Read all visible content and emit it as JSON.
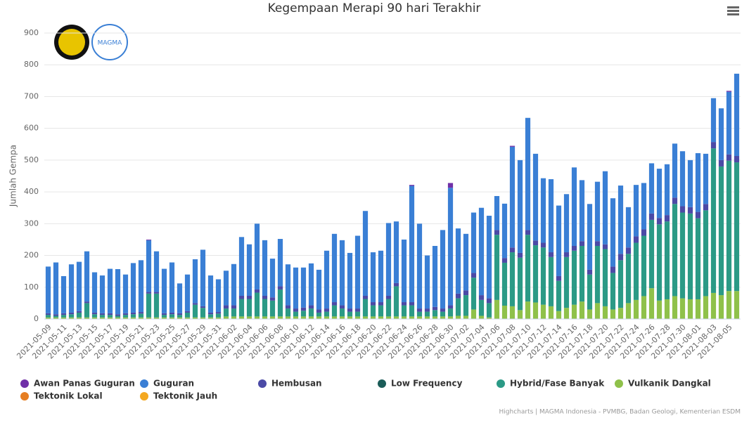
{
  "chart_data": {
    "type": "stacked_bar",
    "title": "Kegempaan Merapi 90 hari Terakhir",
    "y_axis_label": "Jumlah Gempa",
    "credits": "Highcharts | MAGMA Indonesia - PVMBG, Badan Geologi, Kementerian ESDM",
    "logo_text": "MAGMA",
    "ylim": [
      0,
      900
    ],
    "yticks": [
      0,
      100,
      200,
      300,
      400,
      500,
      600,
      700,
      800,
      900
    ],
    "grid": true,
    "categories": [
      "2021-05-09",
      null,
      "2021-05-11",
      null,
      "2021-05-13",
      null,
      "2021-05-15",
      null,
      "2021-05-17",
      null,
      "2021-05-19",
      null,
      "2021-05-21",
      null,
      "2021-05-23",
      null,
      "2021-05-25",
      null,
      "2021-05-27",
      null,
      "2021-05-29",
      null,
      "2021-05-31",
      null,
      "2021-06-02",
      null,
      "2021-06-04",
      null,
      "2021-06-06",
      null,
      "2021-06-08",
      null,
      "2021-06-10",
      null,
      "2021-06-12",
      null,
      "2021-06-14",
      null,
      "2021-06-16",
      null,
      "2021-06-18",
      null,
      "2021-06-20",
      null,
      "2021-06-22",
      null,
      "2021-06-24",
      null,
      "2021-06-26",
      null,
      "2021-06-28",
      null,
      "2021-06-30",
      null,
      "2021-07-02",
      null,
      "2021-07-04",
      null,
      "2021-07-06",
      null,
      "2021-07-08",
      null,
      "2021-07-10",
      null,
      "2021-07-12",
      null,
      "2021-07-14",
      null,
      "2021-07-16",
      null,
      "2021-07-18",
      null,
      "2021-07-20",
      null,
      "2021-07-22",
      null,
      "2021-07-24",
      null,
      "2021-07-26",
      null,
      "2021-07-28",
      null,
      "2021-07-30",
      null,
      "2021-08-01",
      null,
      "2021-08-03",
      null,
      "2021-08-05",
      null
    ],
    "series": [
      {
        "name": "Awan Panas Guguran",
        "color": "#7030a8",
        "values": [
          0,
          0,
          0,
          0,
          0,
          0,
          0,
          0,
          0,
          0,
          0,
          0,
          0,
          2,
          0,
          0,
          0,
          0,
          0,
          0,
          0,
          0,
          0,
          0,
          0,
          0,
          0,
          0,
          0,
          0,
          0,
          0,
          0,
          0,
          0,
          0,
          0,
          0,
          0,
          0,
          0,
          0,
          0,
          0,
          0,
          0,
          0,
          3,
          0,
          0,
          0,
          0,
          15,
          0,
          0,
          0,
          0,
          0,
          0,
          0,
          3,
          0,
          0,
          0,
          0,
          0,
          0,
          0,
          0,
          0,
          0,
          0,
          0,
          0,
          0,
          0,
          0,
          0,
          0,
          0,
          0,
          0,
          0,
          0,
          0,
          0,
          0,
          0,
          3,
          0
        ]
      },
      {
        "name": "Guguran",
        "color": "#3a7fd5",
        "values": [
          147,
          163,
          117,
          152,
          155,
          158,
          127,
          119,
          140,
          142,
          122,
          156,
          163,
          163,
          128,
          140,
          158,
          94,
          115,
          138,
          178,
          117,
          103,
          109,
          130,
          185,
          162,
          207,
          175,
          122,
          149,
          129,
          129,
          126,
          132,
          125,
          182,
          215,
          205,
          175,
          229,
          267,
          157,
          162,
          229,
          194,
          197,
          366,
          267,
          167,
          192,
          247,
          370,
          205,
          178,
          190,
          275,
          260,
          107,
          171,
          317,
          292,
          353,
          273,
          203,
          230,
          222,
          183,
          247,
          192,
          207,
          187,
          230,
          215,
          215,
          127,
          162,
          146,
          158,
          155,
          160,
          170,
          173,
          148,
          185,
          158,
          138,
          163,
          197,
          259
        ]
      },
      {
        "name": "Hembusan",
        "color": "#4b4aa6",
        "values": [
          5,
          5,
          5,
          5,
          5,
          5,
          5,
          5,
          5,
          5,
          5,
          5,
          5,
          5,
          5,
          5,
          5,
          5,
          5,
          5,
          5,
          5,
          5,
          10,
          10,
          10,
          10,
          10,
          10,
          10,
          10,
          10,
          10,
          10,
          10,
          10,
          10,
          10,
          10,
          10,
          10,
          10,
          10,
          10,
          10,
          10,
          10,
          10,
          10,
          10,
          10,
          10,
          10,
          15,
          15,
          15,
          15,
          15,
          15,
          15,
          15,
          15,
          15,
          15,
          15,
          15,
          15,
          15,
          15,
          15,
          15,
          15,
          15,
          20,
          20,
          20,
          20,
          20,
          20,
          20,
          20,
          20,
          20,
          20,
          20,
          20,
          20,
          20,
          20,
          20
        ]
      },
      {
        "name": "Low Frequency",
        "color": "#1b5c58",
        "values": [
          0,
          0,
          0,
          0,
          0,
          0,
          0,
          0,
          0,
          0,
          0,
          0,
          0,
          0,
          0,
          0,
          0,
          0,
          0,
          0,
          0,
          0,
          0,
          0,
          0,
          0,
          0,
          0,
          0,
          0,
          0,
          0,
          0,
          0,
          0,
          0,
          0,
          0,
          0,
          0,
          0,
          0,
          0,
          0,
          0,
          0,
          0,
          0,
          0,
          0,
          0,
          0,
          0,
          0,
          0,
          0,
          0,
          0,
          0,
          0,
          0,
          0,
          0,
          0,
          0,
          0,
          0,
          0,
          0,
          0,
          0,
          0,
          0,
          0,
          0,
          0,
          0,
          0,
          0,
          0,
          0,
          0,
          0,
          0,
          0,
          0,
          0,
          0,
          0,
          0
        ]
      },
      {
        "name": "Hybrid/Fase Banyak",
        "color": "#2b9a86",
        "values": [
          8,
          5,
          8,
          10,
          15,
          45,
          10,
          8,
          8,
          5,
          8,
          10,
          12,
          75,
          75,
          8,
          10,
          8,
          15,
          40,
          30,
          10,
          12,
          25,
          25,
          55,
          55,
          75,
          55,
          50,
          85,
          25,
          15,
          18,
          25,
          12,
          15,
          35,
          25,
          15,
          15,
          55,
          35,
          35,
          55,
          95,
          35,
          35,
          15,
          15,
          20,
          15,
          25,
          55,
          65,
          100,
          50,
          45,
          205,
          135,
          170,
          165,
          210,
          180,
          180,
          155,
          95,
          160,
          170,
          175,
          110,
          180,
          180,
          115,
          150,
          155,
          180,
          190,
          215,
          240,
          245,
          290,
          270,
          270,
          255,
          270,
          455,
          405,
          410,
          405
        ]
      },
      {
        "name": "Vulkanik Dangkal",
        "color": "#8fc14a",
        "values": [
          5,
          5,
          5,
          5,
          5,
          5,
          5,
          5,
          5,
          5,
          5,
          5,
          5,
          5,
          5,
          5,
          5,
          5,
          5,
          5,
          5,
          5,
          5,
          8,
          8,
          8,
          8,
          8,
          8,
          8,
          8,
          8,
          8,
          8,
          8,
          8,
          8,
          8,
          8,
          8,
          8,
          8,
          8,
          8,
          8,
          8,
          8,
          8,
          8,
          8,
          8,
          8,
          8,
          10,
          10,
          30,
          10,
          5,
          60,
          42,
          40,
          28,
          55,
          52,
          45,
          40,
          25,
          35,
          45,
          55,
          30,
          50,
          40,
          30,
          35,
          50,
          60,
          72,
          97,
          58,
          62,
          72,
          65,
          62,
          62,
          72,
          82,
          75,
          88,
          88
        ]
      },
      {
        "name": "Tektonik Lokal",
        "color": "#e67e22",
        "values": [
          0,
          0,
          0,
          0,
          0,
          0,
          0,
          0,
          0,
          0,
          0,
          0,
          0,
          0,
          0,
          0,
          0,
          0,
          0,
          0,
          0,
          0,
          0,
          0,
          0,
          0,
          0,
          0,
          0,
          0,
          0,
          0,
          0,
          0,
          0,
          0,
          0,
          0,
          0,
          0,
          0,
          0,
          0,
          0,
          0,
          0,
          0,
          0,
          0,
          0,
          0,
          0,
          0,
          0,
          0,
          0,
          0,
          0,
          0,
          0,
          0,
          0,
          0,
          0,
          0,
          0,
          0,
          0,
          0,
          0,
          0,
          0,
          0,
          0,
          0,
          0,
          0,
          0,
          0,
          0,
          0,
          0,
          0,
          0,
          0,
          0,
          0,
          0,
          0,
          0
        ]
      },
      {
        "name": "Tektonik Jauh",
        "color": "#f4a820",
        "values": [
          0,
          0,
          0,
          0,
          0,
          0,
          0,
          0,
          0,
          0,
          0,
          0,
          0,
          0,
          0,
          0,
          0,
          0,
          0,
          0,
          0,
          0,
          0,
          0,
          0,
          0,
          0,
          0,
          0,
          0,
          0,
          0,
          0,
          0,
          0,
          0,
          0,
          0,
          0,
          0,
          0,
          0,
          0,
          0,
          0,
          0,
          0,
          0,
          0,
          0,
          0,
          0,
          0,
          0,
          0,
          0,
          0,
          0,
          0,
          0,
          0,
          0,
          0,
          0,
          0,
          0,
          0,
          0,
          0,
          0,
          0,
          0,
          0,
          0,
          0,
          0,
          0,
          0,
          0,
          0,
          0,
          0,
          0,
          0,
          0,
          0,
          0,
          0,
          0,
          0
        ]
      }
    ]
  }
}
